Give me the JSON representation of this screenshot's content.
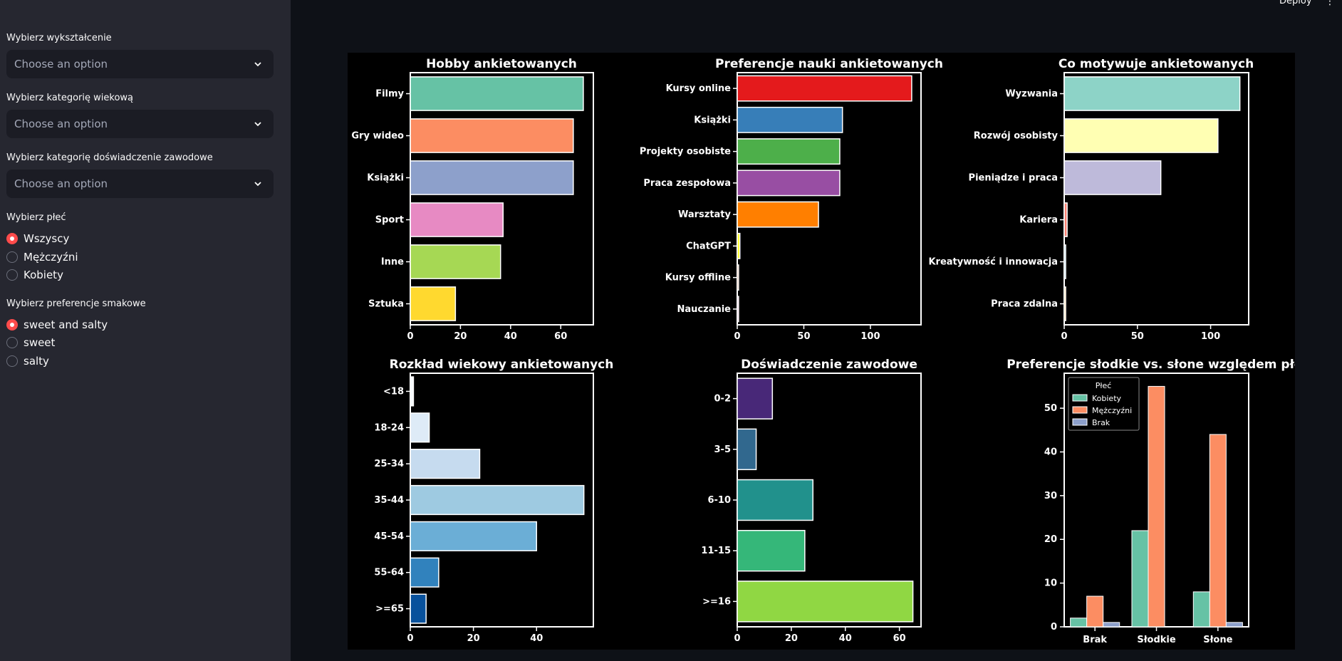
{
  "header": {
    "deploy_label": "Deploy",
    "menu_icon": "kebab-menu-icon"
  },
  "sidebar": {
    "education": {
      "label": "Wybierz wykształcenie",
      "placeholder": "Choose an option"
    },
    "age": {
      "label": "Wybierz kategorię wiekową",
      "placeholder": "Choose an option"
    },
    "experience": {
      "label": "Wybierz kategorię doświadczenie zawodowe",
      "placeholder": "Choose an option"
    },
    "gender": {
      "label": "Wybierz płeć",
      "options": [
        "Wszyscy",
        "Mężczyźni",
        "Kobiety"
      ],
      "selected": 0
    },
    "taste": {
      "label": "Wybierz preferencje smakowe",
      "options": [
        "sweet and salty",
        "sweet",
        "salty"
      ],
      "selected": 0
    }
  },
  "colors": {
    "accent": "#ff4b4b",
    "sidebar_bg": "#262730",
    "main_bg": "#0e1117",
    "figure_bg": "#000000"
  },
  "chart_data": [
    {
      "type": "bar",
      "orientation": "horizontal",
      "title": "Hobby ankietowanych",
      "categories": [
        "Filmy",
        "Gry wideo",
        "Książki",
        "Sport",
        "Inne",
        "Sztuka"
      ],
      "values": [
        69,
        65,
        65,
        37,
        36,
        18
      ],
      "xlim": [
        0,
        73
      ],
      "xticks": [
        0,
        20,
        40,
        60
      ],
      "colors": [
        "#66c2a5",
        "#fc8d62",
        "#8da0cb",
        "#e78ac3",
        "#a6d854",
        "#ffd92f"
      ]
    },
    {
      "type": "bar",
      "orientation": "horizontal",
      "title": "Preferencje nauki ankietowanych",
      "categories": [
        "Kursy online",
        "Książki",
        "Projekty osobiste",
        "Praca zespołowa",
        "Warsztaty",
        "ChatGPT",
        "Kursy offline",
        "Nauczanie"
      ],
      "values": [
        131,
        79,
        77,
        77,
        61,
        2,
        1,
        1
      ],
      "xlim": [
        0,
        138
      ],
      "xticks": [
        0,
        50,
        100
      ],
      "colors": [
        "#e41a1c",
        "#377eb8",
        "#4daf4a",
        "#984ea3",
        "#ff7f00",
        "#ffff33",
        "#a65628",
        "#f781bf"
      ]
    },
    {
      "type": "bar",
      "orientation": "horizontal",
      "title": "Co motywuje ankietowanych",
      "categories": [
        "Wyzwania",
        "Rozwój osobisty",
        "Pieniądze i praca",
        "Kariera",
        "Kreatywność i innowacja",
        "Praca zdalna"
      ],
      "values": [
        120,
        105,
        66,
        2,
        1,
        1
      ],
      "xlim": [
        0,
        126
      ],
      "xticks": [
        0,
        50,
        100
      ],
      "colors": [
        "#8dd3c7",
        "#ffffb3",
        "#bebada",
        "#fb8072",
        "#80b1d3",
        "#fdb462"
      ]
    },
    {
      "type": "bar",
      "orientation": "horizontal",
      "title": "Rozkład wiekowy ankietowanych",
      "categories": [
        "<18",
        "18-24",
        "25-34",
        "35-44",
        "45-54",
        "55-64",
        ">=65"
      ],
      "values": [
        1,
        6,
        22,
        55,
        40,
        9,
        5
      ],
      "xlim": [
        0,
        58
      ],
      "xticks": [
        0,
        20,
        40
      ],
      "colors": [
        "#f7fbff",
        "#deebf7",
        "#c6dbef",
        "#9ecae1",
        "#6baed6",
        "#3182bd",
        "#08519c"
      ]
    },
    {
      "type": "bar",
      "orientation": "horizontal",
      "title": "Doświadczenie zawodowe",
      "categories": [
        "0-2",
        "3-5",
        "6-10",
        "11-15",
        ">=16"
      ],
      "values": [
        13,
        7,
        28,
        25,
        65
      ],
      "xlim": [
        0,
        68
      ],
      "xticks": [
        0,
        20,
        40,
        60
      ],
      "colors": [
        "#482878",
        "#31688e",
        "#21918c",
        "#35b779",
        "#90d743"
      ]
    },
    {
      "type": "bar",
      "orientation": "vertical",
      "title": "Preferencje słodkie vs. słone względem płci",
      "categories": [
        "Brak",
        "Słodkie",
        "Słone"
      ],
      "series": [
        {
          "name": "Kobiety",
          "values": [
            2,
            22,
            8
          ],
          "color": "#66c2a5"
        },
        {
          "name": "Mężczyźni",
          "values": [
            7,
            55,
            44
          ],
          "color": "#fc8d62"
        },
        {
          "name": "Brak",
          "values": [
            1,
            0,
            1
          ],
          "color": "#8da0cb"
        }
      ],
      "legend_title": "Płeć",
      "legend_position": "top-left",
      "ylim": [
        0,
        58
      ],
      "yticks": [
        0,
        10,
        20,
        30,
        40,
        50
      ]
    }
  ]
}
